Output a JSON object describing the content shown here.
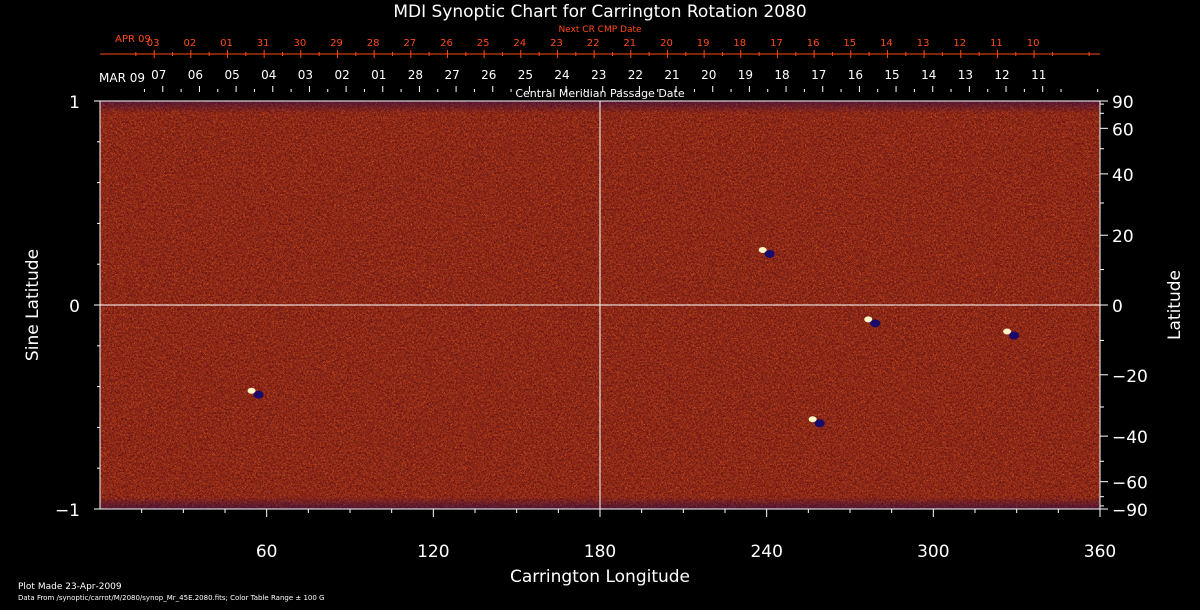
{
  "chart_data": {
    "type": "heatmap",
    "title": "MDI Synoptic Chart for Carrington Rotation 2080",
    "xlabel": "Carrington Longitude",
    "ylabel": "Sine Latitude",
    "y2label": "Latitude",
    "xlim": [
      0,
      360
    ],
    "ylim": [
      -1,
      1
    ],
    "x_ticks": [
      60,
      120,
      180,
      240,
      300,
      360
    ],
    "y_ticks": [
      {
        "value": 1,
        "label": "1"
      },
      {
        "value": 0,
        "label": "0"
      },
      {
        "value": -1,
        "label": "−1"
      }
    ],
    "lat_ticks": [
      {
        "deg": 90,
        "label": "90"
      },
      {
        "deg": 60,
        "label": "60"
      },
      {
        "deg": 40,
        "label": "40"
      },
      {
        "deg": 20,
        "label": "20"
      },
      {
        "deg": 0,
        "label": "0"
      },
      {
        "deg": -20,
        "label": "−20"
      },
      {
        "deg": -40,
        "label": "−40"
      },
      {
        "deg": -60,
        "label": "−60"
      },
      {
        "deg": -90,
        "label": "−90"
      }
    ],
    "cmp_axis": {
      "month_label": "MAR 09",
      "label": "Central Meridian Passage Date",
      "dates": [
        "07",
        "06",
        "05",
        "04",
        "03",
        "02",
        "01",
        "28",
        "27",
        "26",
        "25",
        "24",
        "23",
        "22",
        "21",
        "20",
        "19",
        "18",
        "17",
        "16",
        "15",
        "14",
        "13",
        "12",
        "11"
      ]
    },
    "next_cr_axis": {
      "month_label": "APR 09",
      "label": "Next CR CMP Date",
      "dates": [
        "03",
        "02",
        "01",
        "31",
        "30",
        "29",
        "28",
        "27",
        "26",
        "25",
        "24",
        "23",
        "22",
        "21",
        "20",
        "19",
        "18",
        "17",
        "16",
        "15",
        "14",
        "13",
        "12",
        "11",
        "10"
      ]
    },
    "marker_lines": {
      "x": 180,
      "y": 0
    },
    "color_table_range_gauss": 100,
    "features": [
      {
        "name": "bipolar-region-north",
        "lon": 278,
        "sinlat": -0.08
      },
      {
        "name": "bipolar-region-south",
        "lon": 258,
        "sinlat": -0.57
      },
      {
        "name": "small-region-west",
        "lon": 56,
        "sinlat": -0.43
      },
      {
        "name": "small-region-north",
        "lon": 240,
        "sinlat": 0.26
      },
      {
        "name": "small-region-east",
        "lon": 328,
        "sinlat": -0.14
      }
    ]
  },
  "colors": {
    "background": "#000000",
    "map_base": "#e8581c",
    "map_dark": "#5a0a1a",
    "map_light": "#ffd36a",
    "negative_polarity": "#1a0a6a",
    "axis_text": "#ffffff",
    "next_cr_text": "#ff4a1a"
  },
  "footer": {
    "plot_made": "Plot Made 23‑Apr‑2009",
    "data_from": "Data From /synoptic/carrot/M/2080/synop_Mr_45E.2080.fits; Color Table Range ± 100 G"
  }
}
